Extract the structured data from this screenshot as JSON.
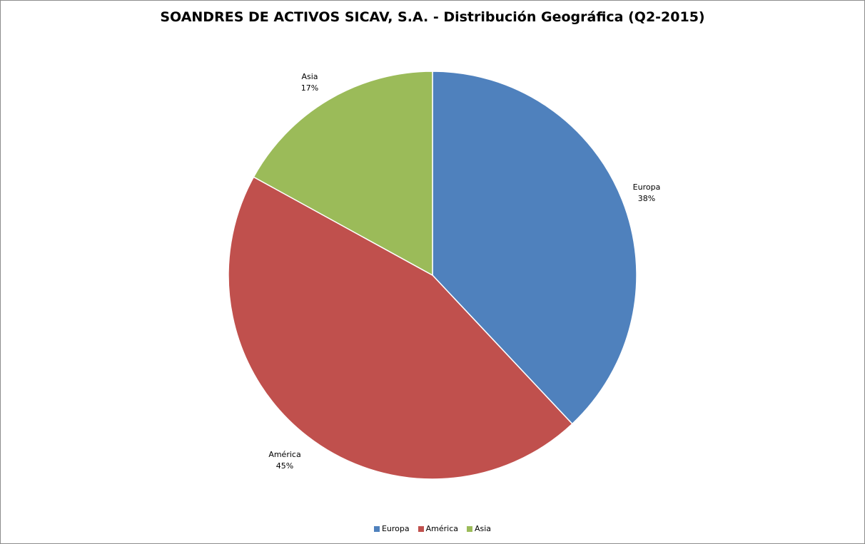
{
  "chart_data": {
    "type": "pie",
    "title": "SOANDRES DE ACTIVOS SICAV, S.A. - Distribución Geográfica (Q2-2015)",
    "categories": [
      "Europa",
      "América",
      "Asia"
    ],
    "values": [
      38,
      45,
      17
    ],
    "value_labels": [
      "38%",
      "45%",
      "17%"
    ],
    "colors": [
      "#4F81BD",
      "#C0504D",
      "#9BBB59"
    ],
    "legend": "bottom"
  }
}
